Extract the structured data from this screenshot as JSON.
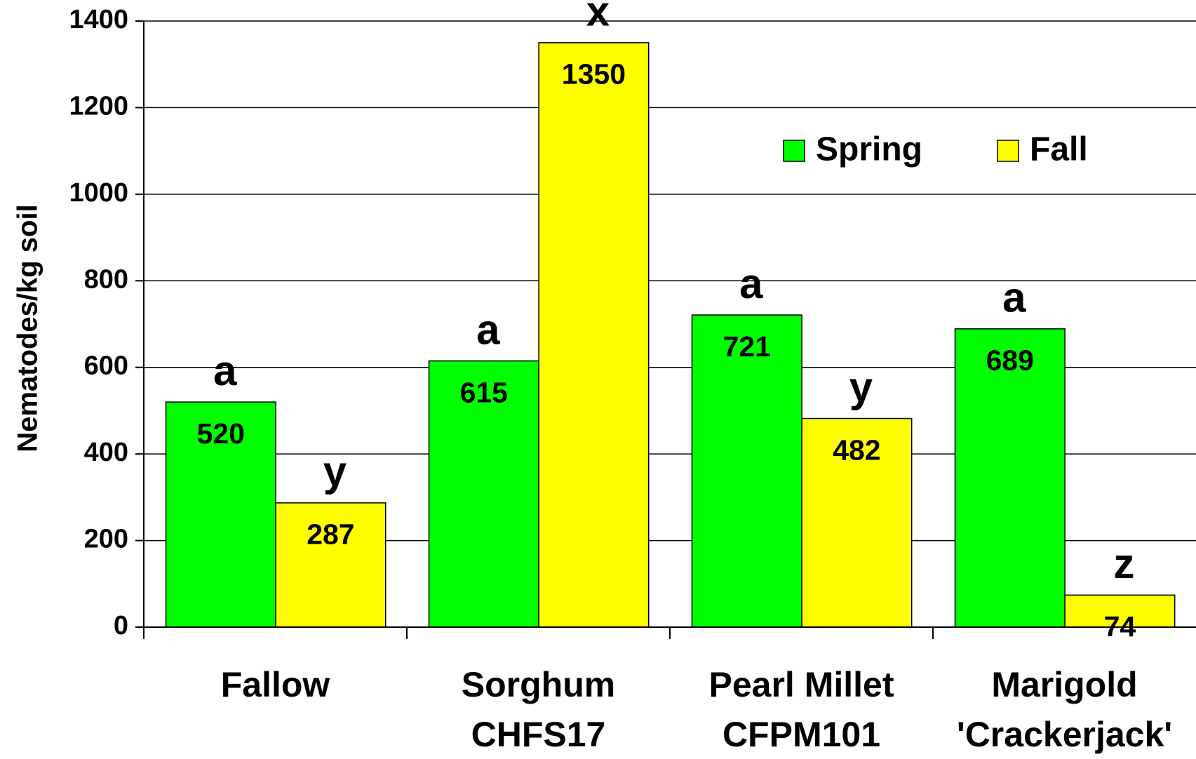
{
  "chart_data": {
    "type": "bar",
    "y_label": "Nematodes/kg soil",
    "categories": [
      [
        "Fallow"
      ],
      [
        "Sorghum",
        "CHFS17"
      ],
      [
        "Pearl Millet",
        "CFPM101"
      ],
      [
        "Marigold",
        "'Crackerjack'"
      ]
    ],
    "series": [
      {
        "name": "Spring",
        "color": "#00ff00",
        "values": [
          520,
          615,
          721,
          689
        ],
        "letters": [
          "a",
          "a",
          "a",
          "a"
        ]
      },
      {
        "name": "Fall",
        "color": "#ffff00",
        "values": [
          287,
          1350,
          482,
          74
        ],
        "letters": [
          "y",
          "x",
          "y",
          "z"
        ]
      }
    ],
    "ylim": [
      0,
      1400
    ],
    "yticks": [
      0,
      200,
      400,
      600,
      800,
      1000,
      1200,
      1400
    ],
    "grid": true
  }
}
